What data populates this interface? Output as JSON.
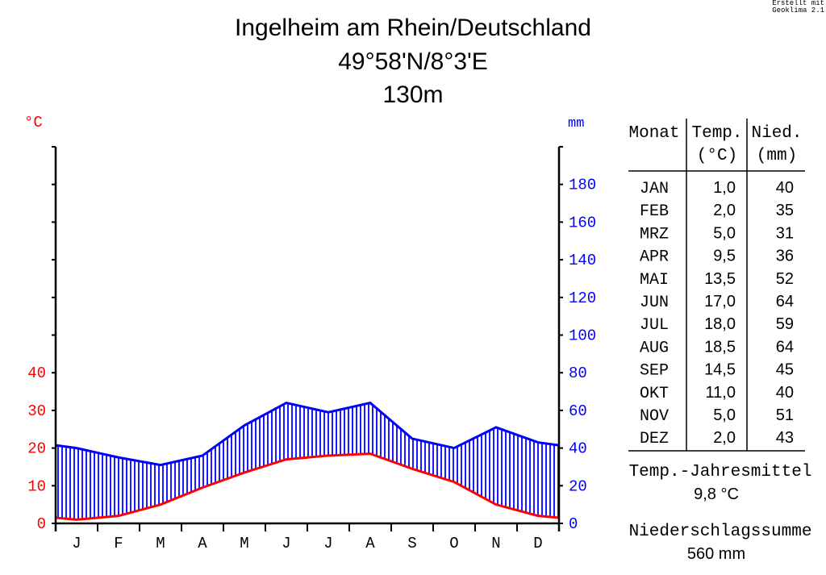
{
  "credit": [
    "Erstellt mit",
    "Geoklima 2.1"
  ],
  "chart_data": {
    "type": "climate-diagram",
    "title": "Ingelheim am Rhein/Deutschland",
    "subtitle": "49°58'N/8°3'E",
    "altitude": "130m",
    "categories": [
      "J",
      "F",
      "M",
      "A",
      "M",
      "J",
      "J",
      "A",
      "S",
      "O",
      "N",
      "D"
    ],
    "y_left": {
      "unit": "°C",
      "ticks": [
        0,
        10,
        20,
        30,
        40
      ],
      "range": [
        0,
        100
      ],
      "color": "#ff0000"
    },
    "y_right": {
      "unit": "mm",
      "ticks": [
        0,
        20,
        40,
        60,
        80,
        100,
        120,
        140,
        160,
        180
      ],
      "range": [
        0,
        200
      ],
      "color": "#0000ff"
    },
    "series": [
      {
        "name": "Temp.",
        "unit": "°C",
        "color": "#ff0000",
        "values": [
          1.0,
          2.0,
          5.0,
          9.5,
          13.5,
          17.0,
          18.0,
          18.5,
          14.5,
          11.0,
          5.0,
          2.0
        ]
      },
      {
        "name": "Nied.",
        "unit": "mm",
        "color": "#0000ff",
        "values": [
          40,
          35,
          31,
          36,
          52,
          64,
          59,
          64,
          45,
          40,
          51,
          43
        ]
      }
    ]
  },
  "table": {
    "headers": [
      [
        "Monat",
        ""
      ],
      [
        "Temp.",
        "(°C)"
      ],
      [
        "Nied.",
        "(mm)"
      ]
    ],
    "rows": [
      {
        "month": "JAN",
        "temp": "1,0",
        "precip": "40"
      },
      {
        "month": "FEB",
        "temp": "2,0",
        "precip": "35"
      },
      {
        "month": "MRZ",
        "temp": "5,0",
        "precip": "31"
      },
      {
        "month": "APR",
        "temp": "9,5",
        "precip": "36"
      },
      {
        "month": "MAI",
        "temp": "13,5",
        "precip": "52"
      },
      {
        "month": "JUN",
        "temp": "17,0",
        "precip": "64"
      },
      {
        "month": "JUL",
        "temp": "18,0",
        "precip": "59"
      },
      {
        "month": "AUG",
        "temp": "18,5",
        "precip": "64"
      },
      {
        "month": "SEP",
        "temp": "14,5",
        "precip": "45"
      },
      {
        "month": "OKT",
        "temp": "11,0",
        "precip": "40"
      },
      {
        "month": "NOV",
        "temp": "5,0",
        "precip": "51"
      },
      {
        "month": "DEZ",
        "temp": "2,0",
        "precip": "43"
      }
    ]
  },
  "summary": {
    "mean_temp_label": "Temp.-Jahresmittel",
    "mean_temp_value": "9,8 °C",
    "precip_sum_label": "Niederschlagssumme",
    "precip_sum_value": "560 mm"
  }
}
